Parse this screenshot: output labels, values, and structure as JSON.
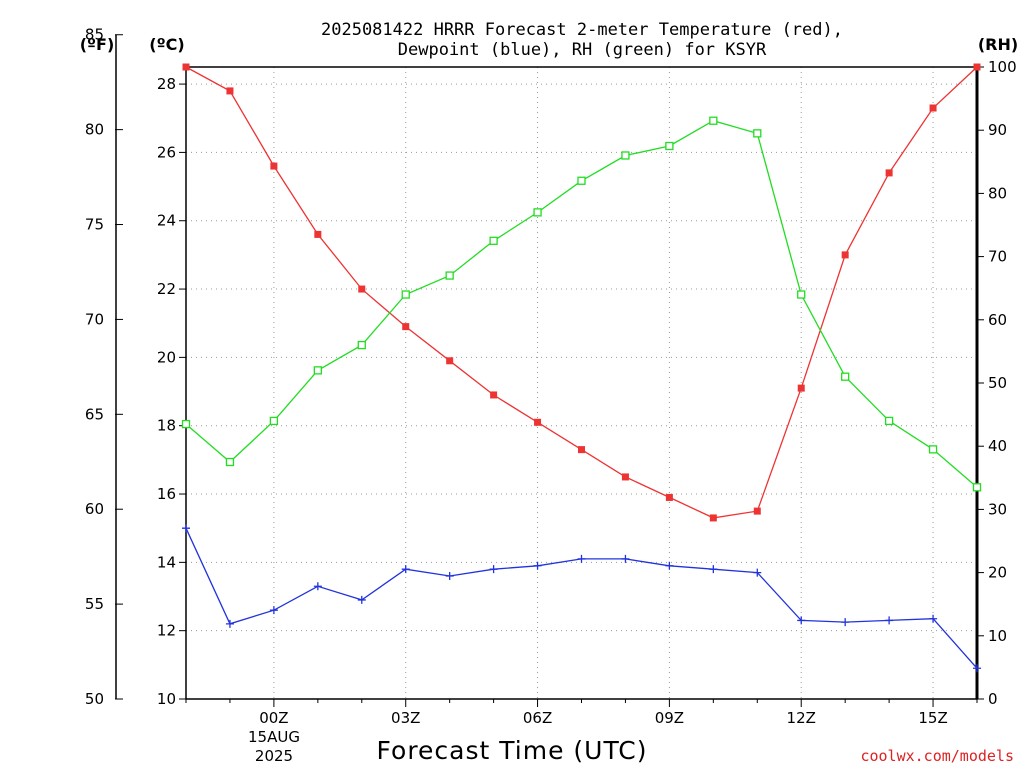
{
  "chart_data": {
    "type": "line",
    "title_lines": [
      "2025081422 HRRR Forecast 2-meter Temperature (red),",
      "Dewpoint (blue), RH (green) for KSYR"
    ],
    "xlabel": "Forecast Time (UTC)",
    "units": {
      "left_f": "(ºF)",
      "left_c": "(ºC)",
      "right": "(RH)"
    },
    "x_ticks": [
      "00Z",
      "03Z",
      "06Z",
      "09Z",
      "12Z",
      "15Z"
    ],
    "date_label": [
      "15AUG",
      "2025"
    ],
    "x": [
      "22Z",
      "23Z",
      "00Z",
      "01Z",
      "02Z",
      "03Z",
      "04Z",
      "05Z",
      "06Z",
      "07Z",
      "08Z",
      "09Z",
      "10Z",
      "11Z",
      "12Z",
      "13Z",
      "14Z",
      "15Z",
      "16Z"
    ],
    "c_axis": {
      "range": [
        10,
        28.5
      ],
      "ticks": [
        10,
        12,
        14,
        16,
        18,
        20,
        22,
        24,
        26,
        28
      ]
    },
    "f_axis": {
      "range": [
        50,
        85
      ],
      "ticks": [
        50,
        55,
        60,
        65,
        70,
        75,
        80,
        85
      ]
    },
    "rh_axis": {
      "range": [
        0,
        100
      ],
      "ticks": [
        0,
        10,
        20,
        30,
        40,
        50,
        60,
        70,
        80,
        90,
        100
      ]
    },
    "grid": true,
    "series": [
      {
        "name": "Temperature",
        "color": "#ee3333",
        "marker": "filled-square",
        "values": [
          28.5,
          27.8,
          25.6,
          23.6,
          22.0,
          20.9,
          19.9,
          18.9,
          18.1,
          17.3,
          16.5,
          15.9,
          15.3,
          15.5,
          19.1,
          23.0,
          25.4,
          27.3,
          28.5
        ]
      },
      {
        "name": "Dewpoint",
        "color": "#2233dd",
        "marker": "plus",
        "values": [
          15.0,
          12.2,
          12.6,
          13.3,
          12.9,
          13.8,
          13.6,
          13.8,
          13.9,
          14.1,
          14.1,
          13.9,
          13.8,
          13.7,
          12.3,
          12.25,
          12.3,
          12.35,
          10.9
        ]
      },
      {
        "name": "RH",
        "color": "#22dd22",
        "marker": "open-square",
        "axis": "rh",
        "values": [
          43.5,
          37.5,
          44,
          52,
          56,
          64,
          67,
          72.5,
          77,
          82,
          86,
          87.5,
          91.5,
          89.5,
          64,
          51,
          44,
          39.5,
          33.5
        ]
      }
    ],
    "credit": "coolwx.com/models"
  }
}
